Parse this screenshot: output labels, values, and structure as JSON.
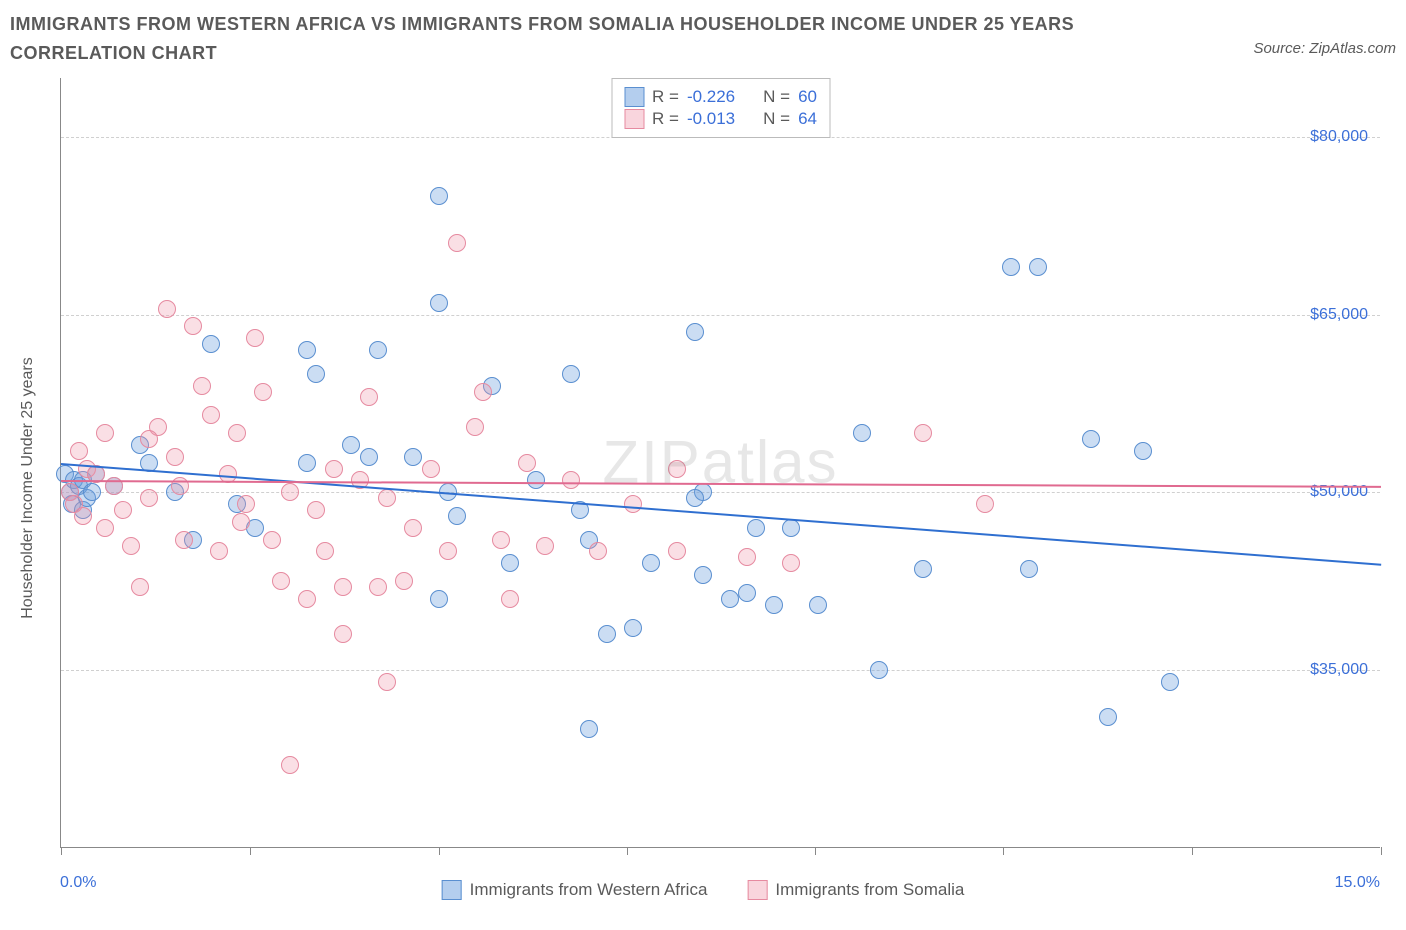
{
  "title": "IMMIGRANTS FROM WESTERN AFRICA VS IMMIGRANTS FROM SOMALIA HOUSEHOLDER INCOME UNDER 25 YEARS CORRELATION CHART",
  "source": "Source: ZipAtlas.com",
  "watermark": "ZIPatlas",
  "ylabel": "Householder Income Under 25 years",
  "chart": {
    "type": "scatter",
    "xlim": [
      0,
      15
    ],
    "ylim": [
      20000,
      85000
    ],
    "xticks_pct": [
      0,
      14.3,
      28.6,
      42.9,
      57.1,
      71.4,
      85.7,
      100
    ],
    "x_min_label": "0.0%",
    "x_max_label": "15.0%",
    "yticks": [
      {
        "v": 35000,
        "label": "$35,000"
      },
      {
        "v": 50000,
        "label": "$50,000"
      },
      {
        "v": 65000,
        "label": "$65,000"
      },
      {
        "v": 80000,
        "label": "$80,000"
      }
    ],
    "grid_color": "#d0d0d0",
    "axis_color": "#888888",
    "background_color": "#ffffff",
    "marker_radius": 9,
    "series": [
      {
        "key": "blue",
        "name": "Immigrants from Western Africa",
        "color_fill": "rgba(106,158,222,0.35)",
        "color_stroke": "#5a8fd0",
        "R": "-0.226",
        "N": "60",
        "trend": {
          "y_at_xmin": 52500,
          "y_at_xmax": 44000,
          "color": "#2f6fd0"
        },
        "points": [
          [
            0.05,
            51500
          ],
          [
            0.1,
            50000
          ],
          [
            0.12,
            49000
          ],
          [
            0.15,
            51000
          ],
          [
            0.2,
            50500
          ],
          [
            0.25,
            48500
          ],
          [
            0.25,
            51000
          ],
          [
            0.3,
            49500
          ],
          [
            0.35,
            50000
          ],
          [
            0.4,
            51500
          ],
          [
            0.9,
            54000
          ],
          [
            1.3,
            50000
          ],
          [
            1.5,
            46000
          ],
          [
            1.7,
            62500
          ],
          [
            2.0,
            49000
          ],
          [
            2.2,
            47000
          ],
          [
            2.9,
            60000
          ],
          [
            2.8,
            52500
          ],
          [
            2.8,
            62000
          ],
          [
            3.3,
            54000
          ],
          [
            3.6,
            62000
          ],
          [
            3.5,
            53000
          ],
          [
            4.3,
            75000
          ],
          [
            4.3,
            66000
          ],
          [
            4.4,
            50000
          ],
          [
            4.3,
            41000
          ],
          [
            4.5,
            48000
          ],
          [
            4.9,
            59000
          ],
          [
            5.1,
            44000
          ],
          [
            5.4,
            51000
          ],
          [
            5.8,
            60000
          ],
          [
            5.9,
            48500
          ],
          [
            6.0,
            46000
          ],
          [
            6.2,
            38000
          ],
          [
            6.0,
            30000
          ],
          [
            6.5,
            38500
          ],
          [
            6.7,
            44000
          ],
          [
            7.2,
            63500
          ],
          [
            7.3,
            50000
          ],
          [
            7.2,
            49500
          ],
          [
            7.3,
            43000
          ],
          [
            7.6,
            41000
          ],
          [
            7.8,
            41500
          ],
          [
            7.9,
            47000
          ],
          [
            8.1,
            40500
          ],
          [
            8.3,
            47000
          ],
          [
            8.6,
            40500
          ],
          [
            9.1,
            55000
          ],
          [
            9.3,
            35000
          ],
          [
            9.8,
            43500
          ],
          [
            10.8,
            69000
          ],
          [
            11.1,
            69000
          ],
          [
            11.0,
            43500
          ],
          [
            11.7,
            54500
          ],
          [
            11.9,
            31000
          ],
          [
            12.3,
            53500
          ],
          [
            12.6,
            34000
          ],
          [
            4.0,
            53000
          ],
          [
            1.0,
            52500
          ],
          [
            0.6,
            50500
          ]
        ]
      },
      {
        "key": "pink",
        "name": "Immigrants from Somalia",
        "color_fill": "rgba(240,150,170,0.3)",
        "color_stroke": "#e68aa0",
        "R": "-0.013",
        "N": "64",
        "trend": {
          "y_at_xmin": 51000,
          "y_at_xmax": 50500,
          "color": "#e06a90"
        },
        "points": [
          [
            0.1,
            50000
          ],
          [
            0.15,
            49000
          ],
          [
            0.2,
            53500
          ],
          [
            0.25,
            48000
          ],
          [
            0.3,
            52000
          ],
          [
            0.4,
            51500
          ],
          [
            0.5,
            55000
          ],
          [
            0.6,
            50500
          ],
          [
            0.7,
            48500
          ],
          [
            0.8,
            45500
          ],
          [
            0.9,
            42000
          ],
          [
            1.0,
            49500
          ],
          [
            1.1,
            55500
          ],
          [
            1.2,
            65500
          ],
          [
            1.3,
            53000
          ],
          [
            1.4,
            46000
          ],
          [
            1.5,
            64000
          ],
          [
            1.6,
            59000
          ],
          [
            1.7,
            56500
          ],
          [
            1.8,
            45000
          ],
          [
            1.9,
            51500
          ],
          [
            2.0,
            55000
          ],
          [
            2.1,
            49000
          ],
          [
            2.2,
            63000
          ],
          [
            2.3,
            58500
          ],
          [
            2.4,
            46000
          ],
          [
            2.5,
            42500
          ],
          [
            2.6,
            50000
          ],
          [
            2.6,
            27000
          ],
          [
            2.8,
            41000
          ],
          [
            2.9,
            48500
          ],
          [
            3.0,
            45000
          ],
          [
            3.1,
            52000
          ],
          [
            3.2,
            42000
          ],
          [
            3.2,
            38000
          ],
          [
            3.4,
            51000
          ],
          [
            3.5,
            58000
          ],
          [
            3.6,
            42000
          ],
          [
            3.7,
            49500
          ],
          [
            3.7,
            34000
          ],
          [
            3.9,
            42500
          ],
          [
            4.0,
            47000
          ],
          [
            4.2,
            52000
          ],
          [
            4.4,
            45000
          ],
          [
            4.5,
            71000
          ],
          [
            4.7,
            55500
          ],
          [
            4.8,
            58500
          ],
          [
            5.0,
            46000
          ],
          [
            5.1,
            41000
          ],
          [
            5.3,
            52500
          ],
          [
            5.5,
            45500
          ],
          [
            5.8,
            51000
          ],
          [
            6.1,
            45000
          ],
          [
            6.5,
            49000
          ],
          [
            7.0,
            52000
          ],
          [
            7.0,
            45000
          ],
          [
            7.8,
            44500
          ],
          [
            8.3,
            44000
          ],
          [
            9.8,
            55000
          ],
          [
            10.5,
            49000
          ],
          [
            1.0,
            54500
          ],
          [
            0.5,
            47000
          ],
          [
            1.35,
            50500
          ],
          [
            2.05,
            47500
          ]
        ]
      }
    ]
  },
  "legend_top": {
    "R_label": "R =",
    "N_label": "N ="
  },
  "legend_bottom": {
    "s1": "Immigrants from Western Africa",
    "s2": "Immigrants from Somalia"
  }
}
